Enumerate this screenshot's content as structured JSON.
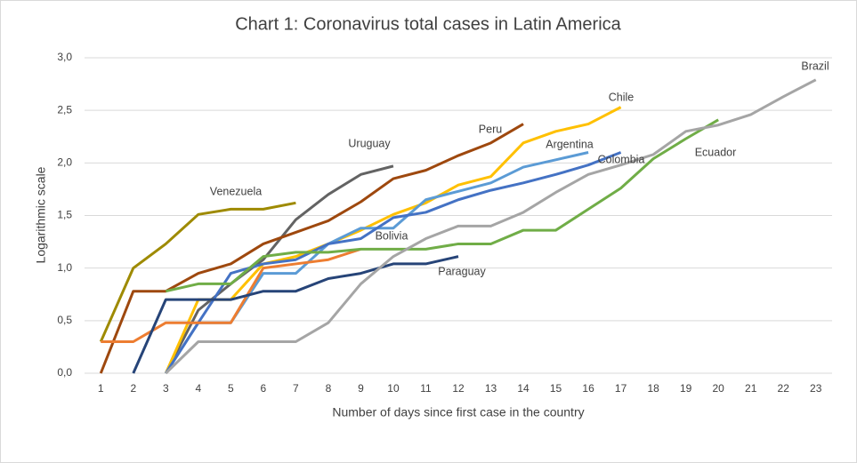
{
  "chart_data": {
    "type": "line",
    "title": "Chart 1: Coronavirus total cases in Latin America",
    "x_label": "Number of days since first case in the country",
    "y_label": "Logarithmic scale",
    "x": [
      1,
      2,
      3,
      4,
      5,
      6,
      7,
      8,
      9,
      10,
      11,
      12,
      13,
      14,
      15,
      16,
      17,
      18,
      19,
      20,
      21,
      22,
      23
    ],
    "xlim": [
      0.5,
      23.5
    ],
    "xticks": [
      1,
      2,
      3,
      4,
      5,
      6,
      7,
      8,
      9,
      10,
      11,
      12,
      13,
      14,
      15,
      16,
      17,
      18,
      19,
      20,
      21,
      22,
      23
    ],
    "ylim": [
      0,
      3
    ],
    "yticks": [
      {
        "value": 0,
        "label": "0,0"
      },
      {
        "value": 0.5,
        "label": "0,5"
      },
      {
        "value": 1,
        "label": "1,0"
      },
      {
        "value": 1.5,
        "label": "1,5"
      },
      {
        "value": 2,
        "label": "2,0"
      },
      {
        "value": 2.5,
        "label": "2,5"
      },
      {
        "value": 3,
        "label": "3,0"
      }
    ],
    "grid": true,
    "series": [
      {
        "name": "Venezuela",
        "color": "#9e8a00",
        "values": [
          0.3,
          1.0,
          1.23,
          1.51,
          1.56,
          1.56,
          1.62,
          null,
          null,
          null,
          null,
          null,
          null,
          null,
          null,
          null,
          null,
          null,
          null,
          null,
          null,
          null,
          null
        ]
      },
      {
        "name": "Uruguay",
        "color": "#636363",
        "values": [
          null,
          null,
          0,
          0.6,
          0.85,
          1.08,
          1.46,
          1.7,
          1.89,
          1.97,
          null,
          null,
          null,
          null,
          null,
          null,
          null,
          null,
          null,
          null,
          null,
          null,
          null
        ]
      },
      {
        "name": "Peru",
        "color": "#9e480e",
        "values": [
          0,
          0.78,
          0.78,
          0.95,
          1.04,
          1.23,
          1.34,
          1.45,
          1.63,
          1.85,
          1.93,
          2.07,
          2.19,
          2.37,
          null,
          null,
          null,
          null,
          null,
          null,
          null,
          null,
          null
        ]
      },
      {
        "name": "Chile",
        "color": "#ffc000",
        "values": [
          null,
          null,
          0,
          0.7,
          0.7,
          1.04,
          1.11,
          1.23,
          1.36,
          1.51,
          1.62,
          1.79,
          1.87,
          2.19,
          2.3,
          2.37,
          2.53,
          null,
          null,
          null,
          null,
          null,
          null
        ]
      },
      {
        "name": "Argentina",
        "color": "#5b9bd5",
        "values": [
          null,
          null,
          0,
          0.48,
          0.48,
          0.95,
          0.95,
          1.23,
          1.38,
          1.38,
          1.65,
          1.73,
          1.81,
          1.96,
          2.03,
          2.1,
          null,
          null,
          null,
          null,
          null,
          null,
          null
        ]
      },
      {
        "name": "Colombia",
        "color": "#4472c4",
        "values": [
          null,
          null,
          0,
          0.48,
          0.95,
          1.04,
          1.08,
          1.23,
          1.28,
          1.48,
          1.53,
          1.65,
          1.74,
          1.81,
          1.89,
          1.98,
          2.1,
          null,
          null,
          null,
          null,
          null,
          null
        ]
      },
      {
        "name": "Bolivia",
        "color": "#ed7d31",
        "values": [
          0.3,
          0.3,
          0.48,
          0.48,
          0.48,
          1.0,
          1.04,
          1.08,
          1.18,
          null,
          null,
          null,
          null,
          null,
          null,
          null,
          null,
          null,
          null,
          null,
          null,
          null,
          null
        ]
      },
      {
        "name": "Paraguay",
        "color": "#264478",
        "values": [
          null,
          0,
          0.7,
          0.7,
          0.7,
          0.78,
          0.78,
          0.9,
          0.95,
          1.04,
          1.04,
          1.11,
          null,
          null,
          null,
          null,
          null,
          null,
          null,
          null,
          null,
          null,
          null
        ]
      },
      {
        "name": "Ecuador",
        "color": "#70ad47",
        "values": [
          null,
          null,
          0.78,
          0.85,
          0.85,
          1.11,
          1.15,
          1.15,
          1.18,
          1.18,
          1.18,
          1.23,
          1.23,
          1.36,
          1.36,
          1.56,
          1.76,
          2.04,
          2.23,
          2.41,
          null,
          null,
          null
        ]
      },
      {
        "name": "Brazil",
        "color": "#a5a5a5",
        "values": [
          null,
          null,
          0,
          0.3,
          0.3,
          0.3,
          0.3,
          0.48,
          0.85,
          1.11,
          1.28,
          1.4,
          1.4,
          1.53,
          1.72,
          1.89,
          1.98,
          2.08,
          2.3,
          2.36,
          2.46,
          2.63,
          2.79
        ]
      }
    ]
  }
}
